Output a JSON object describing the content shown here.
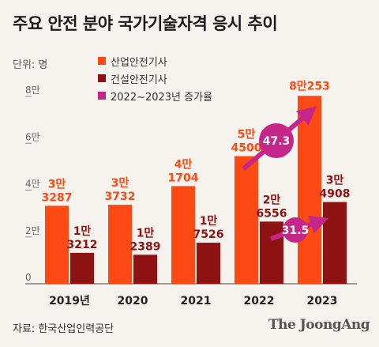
{
  "title": "주요 안전 분야 국가기술자격 응시 추이",
  "unit_label": "단위: 명",
  "source": "자료: 한국산업인력공단",
  "brand": "The JoongAng",
  "colors": {
    "industrial": "#fb4a14",
    "construction": "#8e1212",
    "growth": "#c6268a",
    "background": "#f6f3ee"
  },
  "chart_data": {
    "type": "bar",
    "categories": [
      "2019년",
      "2020",
      "2021",
      "2022",
      "2023"
    ],
    "ylim": [
      0,
      80000
    ],
    "yticks": [
      {
        "value": 0,
        "label": "0"
      },
      {
        "value": 20000,
        "label": "2만"
      },
      {
        "value": 40000,
        "label": "4만"
      },
      {
        "value": 60000,
        "label": "6만"
      },
      {
        "value": 80000,
        "label": "8만"
      }
    ],
    "grid": false,
    "legend_position": "top-left",
    "series": [
      {
        "name": "산업안전기사",
        "values": [
          33287,
          33732,
          41704,
          54500,
          80253
        ],
        "labels": [
          [
            "3만",
            "3287"
          ],
          [
            "3만",
            "3732"
          ],
          [
            "4만",
            "1704"
          ],
          [
            "5만",
            "4500"
          ],
          [
            "8만253"
          ]
        ]
      },
      {
        "name": "건설안전기사",
        "values": [
          13212,
          12389,
          17526,
          26556,
          34908
        ],
        "labels": [
          [
            "1만",
            "3212"
          ],
          [
            "1만",
            "2389"
          ],
          [
            "1만",
            "7526"
          ],
          [
            "2만",
            "6556"
          ],
          [
            "3만",
            "4908"
          ]
        ]
      }
    ],
    "growth": {
      "name": "2022~2023년 증가율",
      "industrial": "47.3",
      "construction": "31.5"
    }
  }
}
